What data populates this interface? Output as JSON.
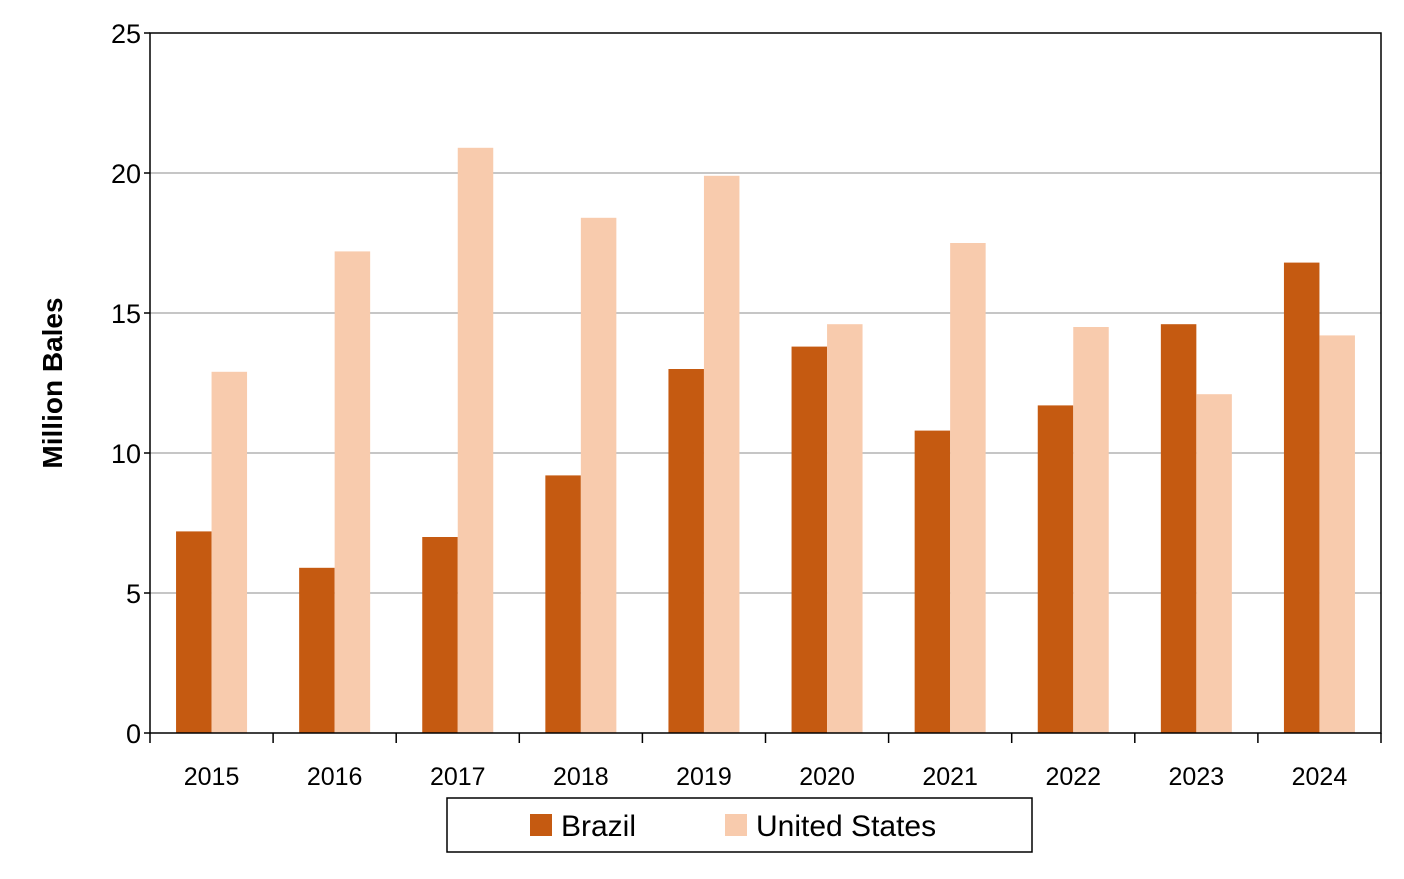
{
  "chart_data": {
    "type": "bar",
    "title": "",
    "xlabel": "",
    "ylabel": "Million Bales",
    "ylim": [
      0,
      25
    ],
    "yticks": [
      0,
      5,
      10,
      15,
      20,
      25
    ],
    "grid": true,
    "legend_position": "bottom",
    "categories": [
      "2015",
      "2016",
      "2017",
      "2018",
      "2019",
      "2020",
      "2021",
      "2022",
      "2023",
      "2024"
    ],
    "series": [
      {
        "name": "Brazil",
        "color": "#C55A11",
        "values": [
          7.2,
          5.9,
          7.0,
          9.2,
          13.0,
          13.8,
          10.8,
          11.7,
          14.6,
          16.8
        ]
      },
      {
        "name": "United States",
        "color": "#F8CBAD",
        "values": [
          12.9,
          17.2,
          20.9,
          18.4,
          19.9,
          14.6,
          17.5,
          14.5,
          12.1,
          14.2
        ]
      }
    ]
  }
}
